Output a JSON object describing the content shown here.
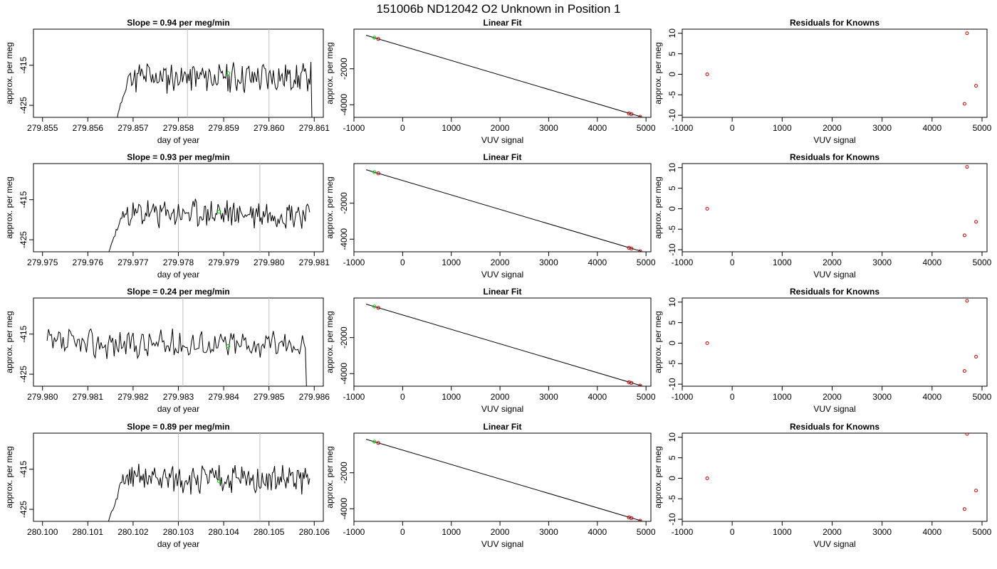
{
  "figure": {
    "title": "151006b     ND12042   O2 Unknown in Position  1"
  },
  "colors": {
    "trace": "#000000",
    "marker_unknown": "#00cc00",
    "marker_known": "#cc0000",
    "vline": "#bfbfbf",
    "fit_line": "#000000"
  },
  "chart_data": [
    {
      "type": "line",
      "panel": "timeseries",
      "row": 1,
      "title": "Slope =  0.94  per meg/min",
      "xlabel": "day of year",
      "ylabel": "approx. per meg",
      "xlim": [
        279.8548,
        279.8612
      ],
      "ylim": [
        -428,
        -406
      ],
      "xticks": [
        "279.855",
        "279.856",
        "279.857",
        "279.858",
        "279.859",
        "279.860",
        "279.861"
      ],
      "xtick_values": [
        279.855,
        279.856,
        279.857,
        279.858,
        279.859,
        279.86,
        279.861
      ],
      "yticks": [
        "-415",
        "-425"
      ],
      "ytick_values": [
        -415,
        -425
      ],
      "trace": {
        "x_start": 279.8566,
        "x_end": 279.861,
        "baseline": -418,
        "noise": 3.2,
        "rise": 0.08,
        "drop_end": true,
        "seed": 11
      },
      "vlines": [
        279.8582,
        279.86
      ],
      "marker": {
        "x": 279.8591,
        "y": -417
      }
    },
    {
      "type": "scatter",
      "panel": "linear-fit",
      "row": 1,
      "title": "Linear Fit",
      "xlabel": "VUV signal",
      "ylabel": "approx. per meg",
      "xlim": [
        -1000,
        5100
      ],
      "ylim": [
        -4700,
        200
      ],
      "xticks": [
        "-1000",
        "0",
        "1000",
        "2000",
        "3000",
        "4000",
        "5000"
      ],
      "xtick_values": [
        -1000,
        0,
        1000,
        2000,
        3000,
        4000,
        5000
      ],
      "yticks": [
        "-2000",
        "-4000"
      ],
      "ytick_values": [
        -2000,
        -4000
      ],
      "line": {
        "x": [
          -750,
          4900
        ],
        "y": [
          -140,
          -4670
        ]
      },
      "known_points": {
        "x": [
          -500,
          4650,
          4700,
          4880
        ],
        "y": [
          -340,
          -4480,
          -4520,
          -4670
        ]
      },
      "unknown_points": {
        "x": [
          -580
        ],
        "y": [
          -270
        ]
      }
    },
    {
      "type": "scatter",
      "panel": "residuals",
      "row": 1,
      "title": "Residuals for Knowns",
      "xlabel": "VUV signal",
      "ylabel": "approx. per meg",
      "xlim": [
        -1000,
        5100
      ],
      "ylim": [
        -10.5,
        11
      ],
      "xticks": [
        "-1000",
        "0",
        "1000",
        "2000",
        "3000",
        "4000",
        "5000"
      ],
      "xtick_values": [
        -1000,
        0,
        1000,
        2000,
        3000,
        4000,
        5000
      ],
      "yticks": [
        "10",
        "5",
        "0",
        "-5",
        "-10"
      ],
      "ytick_values": [
        10,
        5,
        0,
        -5,
        -10
      ],
      "points": {
        "x": [
          -500,
          4650,
          4700,
          4880
        ],
        "y": [
          0,
          -7.2,
          10,
          -2.8
        ]
      }
    },
    {
      "type": "line",
      "panel": "timeseries",
      "row": 2,
      "title": "Slope =  0.93  per meg/min",
      "xlabel": "day of year",
      "ylabel": "approx. per meg",
      "xlim": [
        279.9748,
        279.9812
      ],
      "ylim": [
        -428,
        -406
      ],
      "xticks": [
        "279.975",
        "279.976",
        "279.977",
        "279.978",
        "279.979",
        "279.980",
        "279.981"
      ],
      "xtick_values": [
        279.975,
        279.976,
        279.977,
        279.978,
        279.979,
        279.98,
        279.981
      ],
      "yticks": [
        "-415",
        "-425"
      ],
      "ytick_values": [
        -415,
        -425
      ],
      "trace": {
        "x_start": 279.9764,
        "x_end": 279.9809,
        "baseline": -418.5,
        "noise": 3.0,
        "rise": 0.1,
        "drop_end": false,
        "seed": 23
      },
      "vlines": [
        279.978,
        279.9798
      ],
      "marker": {
        "x": 279.9789,
        "y": -418
      }
    },
    {
      "type": "scatter",
      "panel": "linear-fit",
      "row": 2,
      "title": "Linear Fit",
      "xlabel": "VUV signal",
      "ylabel": "approx. per meg",
      "xlim": [
        -1000,
        5100
      ],
      "ylim": [
        -4700,
        200
      ],
      "xticks": [
        "-1000",
        "0",
        "1000",
        "2000",
        "3000",
        "4000",
        "5000"
      ],
      "xtick_values": [
        -1000,
        0,
        1000,
        2000,
        3000,
        4000,
        5000
      ],
      "yticks": [
        "-2000",
        "-4000"
      ],
      "ytick_values": [
        -2000,
        -4000
      ],
      "line": {
        "x": [
          -750,
          4900
        ],
        "y": [
          -140,
          -4670
        ]
      },
      "known_points": {
        "x": [
          -500,
          4650,
          4700,
          4880
        ],
        "y": [
          -340,
          -4480,
          -4520,
          -4670
        ]
      },
      "unknown_points": {
        "x": [
          -580
        ],
        "y": [
          -270
        ]
      }
    },
    {
      "type": "scatter",
      "panel": "residuals",
      "row": 2,
      "title": "Residuals for Knowns",
      "xlabel": "VUV signal",
      "ylabel": "approx. per meg",
      "xlim": [
        -1000,
        5100
      ],
      "ylim": [
        -10.5,
        11
      ],
      "xticks": [
        "-1000",
        "0",
        "1000",
        "2000",
        "3000",
        "4000",
        "5000"
      ],
      "xtick_values": [
        -1000,
        0,
        1000,
        2000,
        3000,
        4000,
        5000
      ],
      "yticks": [
        "10",
        "5",
        "0",
        "-5",
        "-10"
      ],
      "ytick_values": [
        10,
        5,
        0,
        -5,
        -10
      ],
      "points": {
        "x": [
          -500,
          4650,
          4700,
          4880
        ],
        "y": [
          0,
          -6.5,
          10.2,
          -3.2
        ]
      }
    },
    {
      "type": "line",
      "panel": "timeseries",
      "row": 3,
      "title": "Slope =  0.24  per meg/min",
      "xlabel": "day of year",
      "ylabel": "approx. per meg",
      "xlim": [
        279.9798,
        279.9862
      ],
      "ylim": [
        -428,
        -406
      ],
      "xticks": [
        "279.980",
        "279.981",
        "279.982",
        "279.983",
        "279.984",
        "279.985",
        "279.986"
      ],
      "xtick_values": [
        279.98,
        279.981,
        279.982,
        279.983,
        279.984,
        279.985,
        279.986
      ],
      "yticks": [
        "-415",
        "-425"
      ],
      "ytick_values": [
        -415,
        -425
      ],
      "trace": {
        "x_start": 279.9801,
        "x_end": 279.9859,
        "baseline": -417.5,
        "noise": 3.0,
        "rise": 0.0,
        "drop_end": true,
        "seed": 37
      },
      "vlines": [
        279.9831,
        279.985
      ],
      "marker": {
        "x": 279.9841,
        "y": -418
      }
    },
    {
      "type": "scatter",
      "panel": "linear-fit",
      "row": 3,
      "title": "Linear Fit",
      "xlabel": "VUV signal",
      "ylabel": "approx. per meg",
      "xlim": [
        -1000,
        5100
      ],
      "ylim": [
        -4700,
        200
      ],
      "xticks": [
        "-1000",
        "0",
        "1000",
        "2000",
        "3000",
        "4000",
        "5000"
      ],
      "xtick_values": [
        -1000,
        0,
        1000,
        2000,
        3000,
        4000,
        5000
      ],
      "yticks": [
        "-2000",
        "-4000"
      ],
      "ytick_values": [
        -2000,
        -4000
      ],
      "line": {
        "x": [
          -750,
          4900
        ],
        "y": [
          -140,
          -4670
        ]
      },
      "known_points": {
        "x": [
          -500,
          4650,
          4700,
          4880
        ],
        "y": [
          -340,
          -4480,
          -4520,
          -4670
        ]
      },
      "unknown_points": {
        "x": [
          -580
        ],
        "y": [
          -270
        ]
      }
    },
    {
      "type": "scatter",
      "panel": "residuals",
      "row": 3,
      "title": "Residuals for Knowns",
      "xlabel": "VUV signal",
      "ylabel": "approx. per meg",
      "xlim": [
        -1000,
        5100
      ],
      "ylim": [
        -10.5,
        11
      ],
      "xticks": [
        "-1000",
        "0",
        "1000",
        "2000",
        "3000",
        "4000",
        "5000"
      ],
      "xtick_values": [
        -1000,
        0,
        1000,
        2000,
        3000,
        4000,
        5000
      ],
      "yticks": [
        "10",
        "5",
        "0",
        "-5",
        "-10"
      ],
      "ytick_values": [
        10,
        5,
        0,
        -5,
        -10
      ],
      "points": {
        "x": [
          -500,
          4650,
          4700,
          4880
        ],
        "y": [
          0,
          -6.8,
          10.3,
          -3.3
        ]
      }
    },
    {
      "type": "line",
      "panel": "timeseries",
      "row": 4,
      "title": "Slope =  0.89  per meg/min",
      "xlabel": "day of year",
      "ylabel": "approx. per meg",
      "xlim": [
        280.0998,
        280.1062
      ],
      "ylim": [
        -428,
        -406
      ],
      "xticks": [
        "280.100",
        "280.101",
        "280.102",
        "280.103",
        "280.104",
        "280.105",
        "280.106"
      ],
      "xtick_values": [
        280.1,
        280.101,
        280.102,
        280.103,
        280.104,
        280.105,
        280.106
      ],
      "yticks": [
        "-415",
        "-425"
      ],
      "ytick_values": [
        -415,
        -425
      ],
      "trace": {
        "x_start": 280.1014,
        "x_end": 280.1059,
        "baseline": -417.5,
        "noise": 3.0,
        "rise": 0.1,
        "drop_end": false,
        "seed": 51
      },
      "vlines": [
        280.103,
        280.1048
      ],
      "marker": {
        "x": 280.1039,
        "y": -418
      }
    },
    {
      "type": "scatter",
      "panel": "linear-fit",
      "row": 4,
      "title": "Linear Fit",
      "xlabel": "VUV signal",
      "ylabel": "approx. per meg",
      "xlim": [
        -1000,
        5100
      ],
      "ylim": [
        -4700,
        200
      ],
      "xticks": [
        "-1000",
        "0",
        "1000",
        "2000",
        "3000",
        "4000",
        "5000"
      ],
      "xtick_values": [
        -1000,
        0,
        1000,
        2000,
        3000,
        4000,
        5000
      ],
      "yticks": [
        "-2000",
        "-4000"
      ],
      "ytick_values": [
        -2000,
        -4000
      ],
      "line": {
        "x": [
          -750,
          4900
        ],
        "y": [
          -140,
          -4670
        ]
      },
      "known_points": {
        "x": [
          -500,
          4650,
          4700,
          4880
        ],
        "y": [
          -340,
          -4480,
          -4520,
          -4670
        ]
      },
      "unknown_points": {
        "x": [
          -580
        ],
        "y": [
          -270
        ]
      }
    },
    {
      "type": "scatter",
      "panel": "residuals",
      "row": 4,
      "title": "Residuals for Knowns",
      "xlabel": "VUV signal",
      "ylabel": "approx. per meg",
      "xlim": [
        -1000,
        5100
      ],
      "ylim": [
        -10.5,
        11
      ],
      "xticks": [
        "-1000",
        "0",
        "1000",
        "2000",
        "3000",
        "4000",
        "5000"
      ],
      "xtick_values": [
        -1000,
        0,
        1000,
        2000,
        3000,
        4000,
        5000
      ],
      "yticks": [
        "10",
        "5",
        "0",
        "-5",
        "-10"
      ],
      "ytick_values": [
        10,
        5,
        0,
        -5,
        -10
      ],
      "points": {
        "x": [
          -500,
          4650,
          4700,
          4880
        ],
        "y": [
          0,
          -7.5,
          10.8,
          -3
        ]
      }
    }
  ]
}
